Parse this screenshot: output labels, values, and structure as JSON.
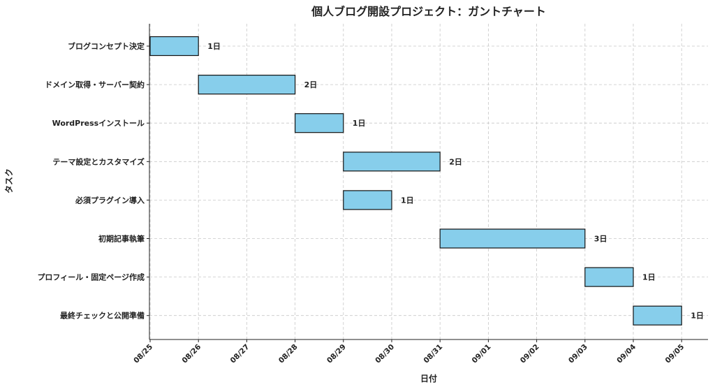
{
  "chart_data": {
    "type": "bar",
    "orientation": "horizontal",
    "title": "個人ブログ開設プロジェクト：ガントチャート",
    "xlabel": "日付",
    "ylabel": "タスク",
    "grid": true,
    "x_ticks": [
      "08/25",
      "08/26",
      "08/27",
      "08/28",
      "08/29",
      "08/30",
      "08/31",
      "09/01",
      "09/02",
      "09/03",
      "09/04",
      "09/05"
    ],
    "tasks": [
      {
        "name": "ブログコンセプト決定",
        "start": "08/25",
        "end": "08/26",
        "label": "1日"
      },
      {
        "name": "ドメイン取得・サーバー契約",
        "start": "08/26",
        "end": "08/28",
        "label": "2日"
      },
      {
        "name": "WordPressインストール",
        "start": "08/28",
        "end": "08/29",
        "label": "1日"
      },
      {
        "name": "テーマ設定とカスタマイズ",
        "start": "08/29",
        "end": "08/31",
        "label": "2日"
      },
      {
        "name": "必須プラグイン導入",
        "start": "08/29",
        "end": "08/30",
        "label": "1日"
      },
      {
        "name": "初期記事執筆",
        "start": "08/31",
        "end": "09/03",
        "label": "3日"
      },
      {
        "name": "プロフィール・固定ページ作成",
        "start": "09/03",
        "end": "09/04",
        "label": "1日"
      },
      {
        "name": "最終チェックと公開準備",
        "start": "09/04",
        "end": "09/05",
        "label": "1日"
      }
    ],
    "colors": {
      "bar": "#87ceeb",
      "bar_edge": "#111111"
    }
  }
}
